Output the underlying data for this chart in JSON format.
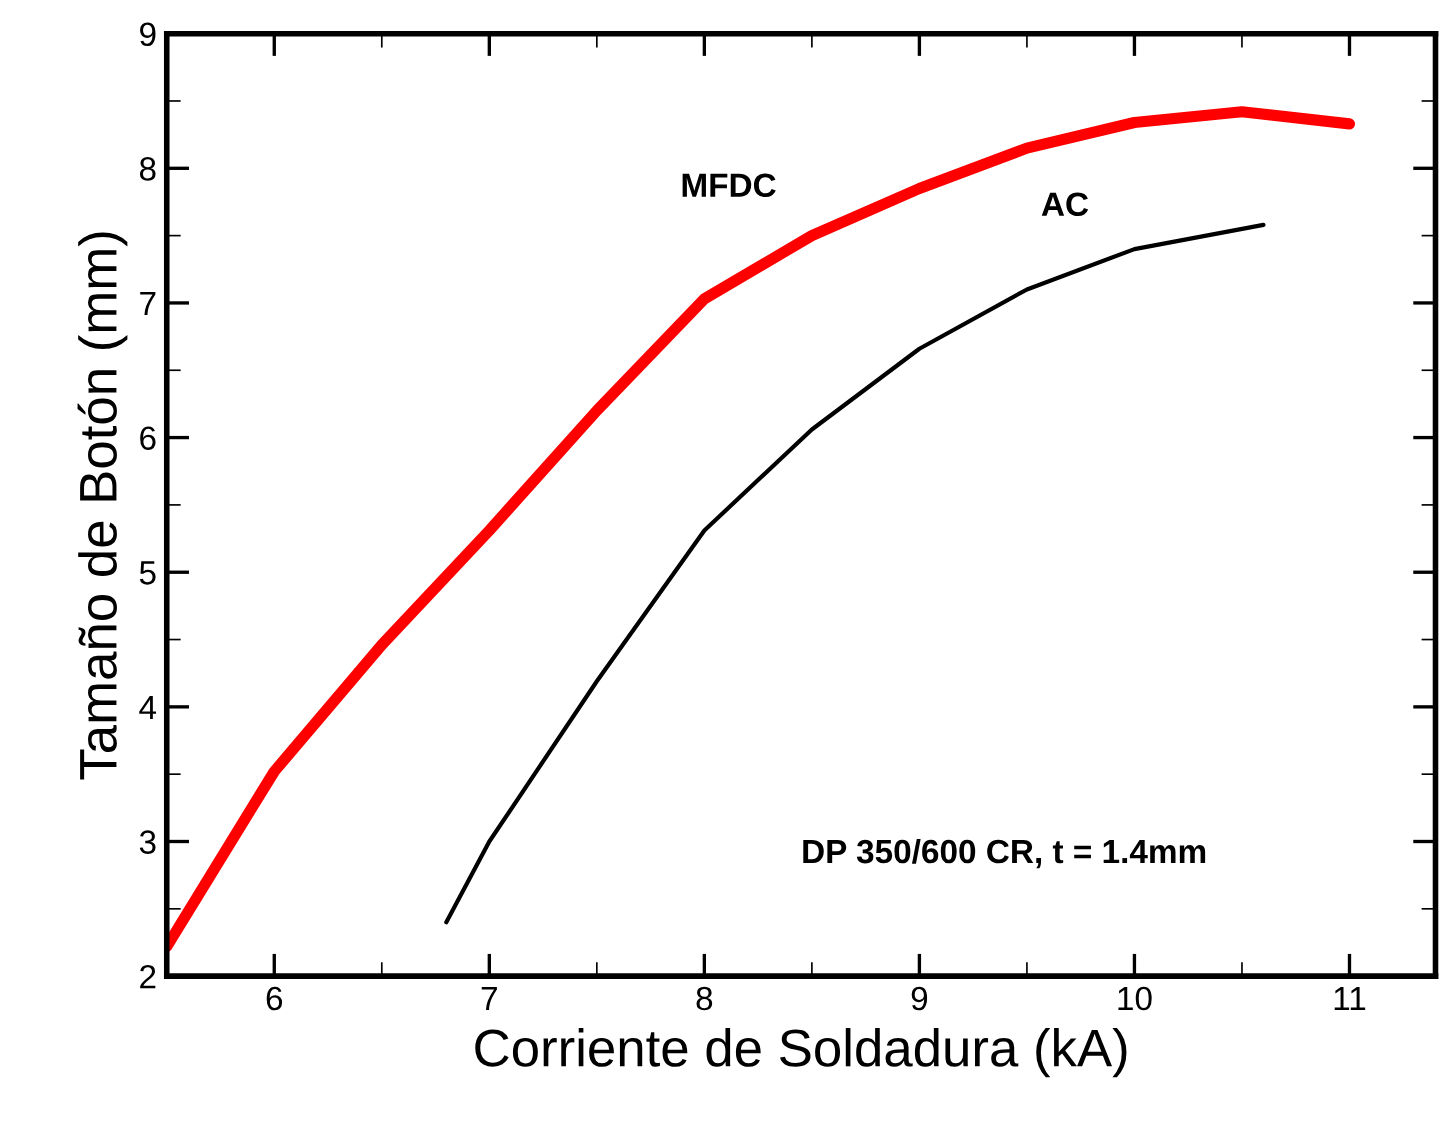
{
  "chart_data": {
    "type": "line",
    "xlabel": "Corriente de Soldadura (kA)",
    "ylabel": "Tamaño de Botón (mm)",
    "xlim": [
      5.5,
      11.4
    ],
    "ylim": [
      2,
      9
    ],
    "xticks": [
      6,
      7,
      8,
      9,
      10,
      11
    ],
    "yticks": [
      2,
      3,
      4,
      5,
      6,
      7,
      8,
      9
    ],
    "grid": false,
    "legend": false,
    "series": [
      {
        "name": "MFDC",
        "color": "#ff0000",
        "x": [
          5.5,
          6,
          6.5,
          7,
          7.5,
          8,
          8.5,
          9,
          9.5,
          10,
          10.5,
          11
        ],
        "values": [
          2.22,
          3.52,
          4.46,
          5.31,
          6.2,
          7.03,
          7.5,
          7.85,
          8.15,
          8.34,
          8.42,
          8.33
        ]
      },
      {
        "name": "AC",
        "color": "#000000",
        "x": [
          6.8,
          7,
          7.5,
          8,
          8.5,
          9,
          9.5,
          10,
          10.6
        ],
        "values": [
          2.4,
          3.0,
          4.19,
          5.31,
          6.06,
          6.66,
          7.1,
          7.4,
          7.58
        ]
      }
    ],
    "annotations": [
      "DP 350/600 CR, t = 1.4mm"
    ]
  }
}
